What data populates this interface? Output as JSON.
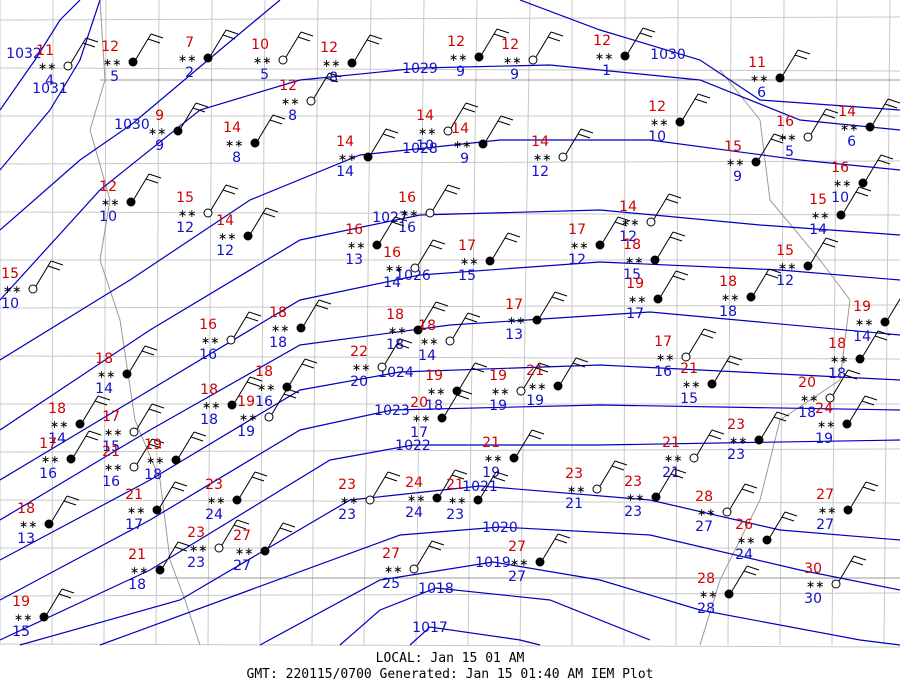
{
  "map": {
    "stations": [
      {
        "temp": 11,
        "dew": 4
      },
      {
        "temp": 12,
        "dew": 5
      },
      {
        "temp": 7,
        "dew": 2
      },
      {
        "temp": 10,
        "dew": 5
      },
      {
        "temp": 12,
        "dew": 8
      },
      {
        "temp": 12,
        "dew": 9
      },
      {
        "temp": 12,
        "dew": 9
      },
      {
        "temp": 12,
        "dew": 1
      },
      {
        "temp": 11,
        "dew": 6
      },
      {
        "temp": 12,
        "dew": 8
      },
      {
        "temp": 9,
        "dew": 9
      },
      {
        "temp": 14,
        "dew": 8
      },
      {
        "temp": 14,
        "dew": 10
      },
      {
        "temp": 14,
        "dew": 9
      },
      {
        "temp": 12,
        "dew": 10
      },
      {
        "temp": 16,
        "dew": 5
      },
      {
        "temp": 14,
        "dew": 6
      },
      {
        "temp": 14,
        "dew": 14
      },
      {
        "temp": 14,
        "dew": 12
      },
      {
        "temp": 15,
        "dew": 9
      },
      {
        "temp": 12,
        "dew": 10
      },
      {
        "temp": 15,
        "dew": 12
      },
      {
        "temp": 16,
        "dew": 10
      },
      {
        "temp": 15,
        "dew": 14
      },
      {
        "temp": 16,
        "dew": 16
      },
      {
        "temp": 14,
        "dew": 12
      },
      {
        "temp": 16,
        "dew": 13
      },
      {
        "temp": 14,
        "dew": 12
      },
      {
        "temp": 17,
        "dew": 12
      },
      {
        "temp": 18,
        "dew": 15
      },
      {
        "temp": 16,
        "dew": 14
      },
      {
        "temp": 17,
        "dew": 15
      },
      {
        "temp": 15,
        "dew": 12
      },
      {
        "temp": 15,
        "dew": 10
      },
      {
        "temp": 19,
        "dew": 17
      },
      {
        "temp": 18,
        "dew": 18
      },
      {
        "temp": 16,
        "dew": 16
      },
      {
        "temp": 18,
        "dew": 18
      },
      {
        "temp": 18,
        "dew": 18
      },
      {
        "temp": 18,
        "dew": 14
      },
      {
        "temp": 17,
        "dew": 13
      },
      {
        "temp": 19,
        "dew": 14
      },
      {
        "temp": 17,
        "dew": 16
      },
      {
        "temp": 18,
        "dew": 18
      },
      {
        "temp": 18,
        "dew": 14
      },
      {
        "temp": 22,
        "dew": 20
      },
      {
        "temp": 18,
        "dew": 16
      },
      {
        "temp": 19,
        "dew": 18
      },
      {
        "temp": 19,
        "dew": 19
      },
      {
        "temp": 21,
        "dew": 19
      },
      {
        "temp": 21,
        "dew": 15
      },
      {
        "temp": 20,
        "dew": 18
      },
      {
        "temp": 18,
        "dew": 18
      },
      {
        "temp": 18,
        "dew": 14
      },
      {
        "temp": 17,
        "dew": 15
      },
      {
        "temp": 20,
        "dew": 17
      },
      {
        "temp": 24,
        "dew": 19
      },
      {
        "temp": 19,
        "dew": 19
      },
      {
        "temp": 23,
        "dew": 23
      },
      {
        "temp": 17,
        "dew": 16
      },
      {
        "temp": 21,
        "dew": 16
      },
      {
        "temp": 19,
        "dew": 18
      },
      {
        "temp": 21,
        "dew": 19
      },
      {
        "temp": 21,
        "dew": 21
      },
      {
        "temp": 18,
        "dew": 13
      },
      {
        "temp": 23,
        "dew": 24
      },
      {
        "temp": 23,
        "dew": 23
      },
      {
        "temp": 24,
        "dew": 24
      },
      {
        "temp": 21,
        "dew": 23
      },
      {
        "temp": 23,
        "dew": 21
      },
      {
        "temp": 23,
        "dew": 23
      },
      {
        "temp": 21,
        "dew": 17
      },
      {
        "temp": 28,
        "dew": 27
      },
      {
        "temp": 27,
        "dew": 27
      },
      {
        "temp": 26,
        "dew": 24
      },
      {
        "temp": 23,
        "dew": 23
      },
      {
        "temp": 27,
        "dew": 27
      },
      {
        "temp": 21,
        "dew": 18
      },
      {
        "temp": 27,
        "dew": 25
      },
      {
        "temp": 27,
        "dew": 27
      },
      {
        "temp": 28,
        "dew": 28
      },
      {
        "temp": 30,
        "dew": 30
      },
      {
        "temp": 19,
        "dew": 15
      }
    ],
    "isobars": [
      1032,
      1031,
      1030,
      1030,
      1029,
      1028,
      1027,
      1026,
      1024,
      1023,
      1022,
      1021,
      1020,
      1019,
      1018,
      1017
    ],
    "footer": {
      "local": "LOCAL: Jan 15 01 AM",
      "gmt": "GMT: 220115/0700 Generated: Jan 15 01:40 AM IEM Plot"
    }
  }
}
